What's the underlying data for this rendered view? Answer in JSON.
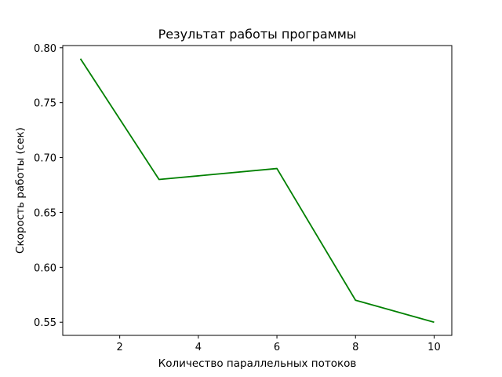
{
  "chart_data": {
    "type": "line",
    "title": "Результат работы программы",
    "xlabel": "Количество параллельных потоков",
    "ylabel": "Скорость работы (сек)",
    "x": [
      1,
      3,
      6,
      8,
      10
    ],
    "series": [
      {
        "values": [
          0.79,
          0.68,
          0.69,
          0.57,
          0.55
        ],
        "color": "#008000"
      }
    ],
    "xlim": [
      0.55,
      10.45
    ],
    "ylim": [
      0.538,
      0.802
    ],
    "xticks": [
      2,
      4,
      6,
      8,
      10
    ],
    "xtick_labels": [
      "2",
      "4",
      "6",
      "8",
      "10"
    ],
    "yticks": [
      0.55,
      0.6,
      0.65,
      0.7,
      0.75,
      0.8
    ],
    "ytick_labels": [
      "0.55",
      "0.60",
      "0.65",
      "0.70",
      "0.75",
      "0.80"
    ],
    "grid": false,
    "legend": "none"
  }
}
